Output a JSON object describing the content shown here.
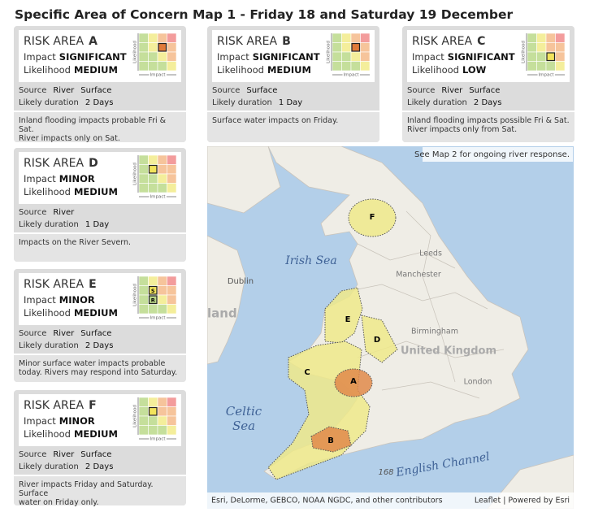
{
  "title": "Specific Area of Concern Map 1 - Friday 18 and Saturday 19 December",
  "labels": {
    "risk_area": "RISK AREA",
    "impact": "Impact",
    "likelihood": "Likelihood",
    "source": "Source",
    "duration": "Likely duration",
    "matrix_y": "Likelihood",
    "matrix_x": "Impact"
  },
  "cards": [
    {
      "letter": "A",
      "impact": "SIGNIFICANT",
      "likelihood": "MEDIUM",
      "sources": [
        "River",
        "Surface"
      ],
      "duration": "2 Days",
      "note": [
        "Inland flooding impacts probable Fri & Sat.",
        "River impacts only on Sat."
      ]
    },
    {
      "letter": "B",
      "impact": "SIGNIFICANT",
      "likelihood": "MEDIUM",
      "sources": [
        "Surface"
      ],
      "duration": "1 Day",
      "note": [
        "Surface water impacts on Friday."
      ]
    },
    {
      "letter": "C",
      "impact": "SIGNIFICANT",
      "likelihood": "LOW",
      "sources": [
        "River",
        "Surface"
      ],
      "duration": "2 Days",
      "note": [
        "Inland flooding impacts possible Fri & Sat.",
        "River impacts only from Sat."
      ]
    },
    {
      "letter": "D",
      "impact": "MINOR",
      "likelihood": "MEDIUM",
      "sources": [
        "River"
      ],
      "duration": "1 Day",
      "note": [
        "Impacts on the River Severn."
      ]
    },
    {
      "letter": "E",
      "impact": "MINOR",
      "likelihood": "MEDIUM",
      "sources": [
        "River",
        "Surface"
      ],
      "duration": "2 Days",
      "note": [
        "Minor surface water impacts probable",
        "today. Rivers may respond into Saturday."
      ],
      "matrix_marks": [
        "S",
        "R"
      ]
    },
    {
      "letter": "F",
      "impact": "MINOR",
      "likelihood": "MEDIUM",
      "sources": [
        "River",
        "Surface"
      ],
      "duration": "2 Days",
      "note": [
        "River impacts Friday and Saturday. Surface",
        "water on Friday only."
      ]
    }
  ],
  "map": {
    "note": "See Map 2 for ongoing river response.",
    "areas": [
      "F",
      "E",
      "D",
      "C",
      "A",
      "B"
    ],
    "places": {
      "irish_sea": "Irish Sea",
      "dublin": "Dublin",
      "ireland": "land",
      "celtic": "Celtic",
      "sea": "Sea",
      "channel": "English Channel",
      "depth": "168",
      "uk": "United Kingdom",
      "birmingham": "Birmingham",
      "london": "London",
      "manchester": "Manchester",
      "leeds": "Leeds"
    },
    "attribution": "Esri, DeLorme, GEBCO, NOAA NGDC, and other contributors",
    "credits": "Leaflet | Powered by Esri"
  }
}
